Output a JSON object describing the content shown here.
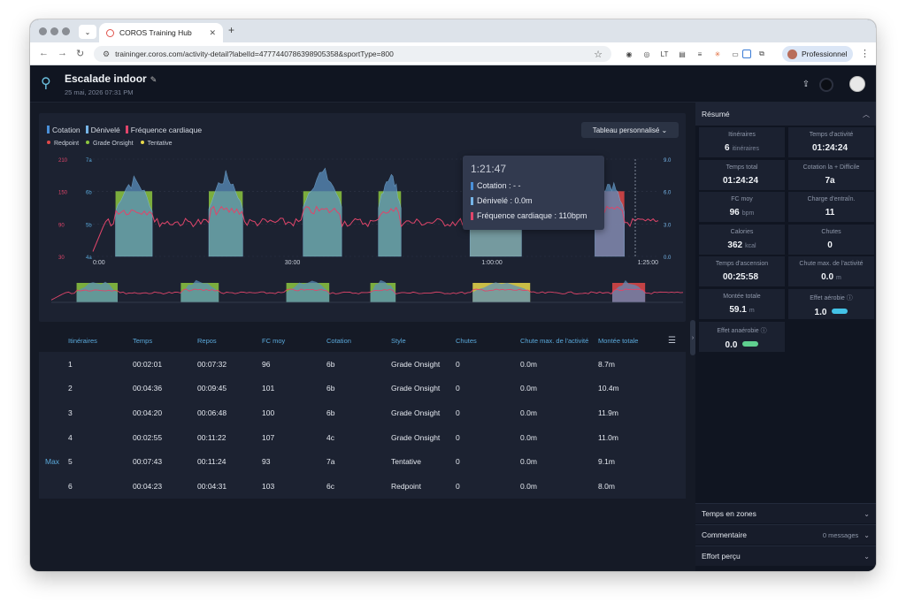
{
  "browser": {
    "tab_title": "COROS Training Hub",
    "url": "traininger.coros.com/activity-detail?labelId=4777440786398905358&sportType=800",
    "profile_label": "Professionnel"
  },
  "activity": {
    "title": "Escalade indoor",
    "date": "25 mai, 2026 07:31 PM"
  },
  "chart": {
    "legend": [
      "Cotation",
      "Dénivelé",
      "Fréquence cardiaque"
    ],
    "legend2": [
      "Redpoint",
      "Grade Onsight",
      "Tentative"
    ],
    "dropdown_label": "Tableau personnalisé ⌄",
    "colors": {
      "cotation": "#4a90d9",
      "denivele": "#76b5e8",
      "hr": "#e0456a",
      "redpoint": "#e04848",
      "onsight": "#8cc63f",
      "tentative": "#e8d84a"
    },
    "left_ticks": [
      "210",
      "150",
      "90",
      "30"
    ],
    "mid_ticks": [
      "7a",
      "6b",
      "5b",
      "4a"
    ],
    "right_ticks": [
      "9.0",
      "6.0",
      "3.0",
      "0.0"
    ],
    "x_ticks": [
      "0:00",
      "30:00",
      "1:00:00",
      "1:25:00"
    ]
  },
  "chart_data": {
    "type": "area",
    "x_unit": "time",
    "duration": "1:25:00",
    "x_ticks": [
      "0:00",
      "30:00",
      "1:00:00",
      "1:25:00"
    ],
    "hr_range": [
      30,
      210
    ],
    "grade_ticks": [
      "4a",
      "5b",
      "6b",
      "7a"
    ],
    "elevation_range": [
      0,
      9
    ],
    "climbs": [
      {
        "route": 1,
        "start_frac": 0.04,
        "end_frac": 0.105,
        "style": "Grade Onsight",
        "peak_elev": 8.7
      },
      {
        "route": 2,
        "start_frac": 0.205,
        "end_frac": 0.265,
        "style": "Grade Onsight",
        "peak_elev": 10.4
      },
      {
        "route": 3,
        "start_frac": 0.372,
        "end_frac": 0.44,
        "style": "Grade Onsight",
        "peak_elev": 11.9
      },
      {
        "route": 4,
        "start_frac": 0.505,
        "end_frac": 0.545,
        "style": "Grade Onsight",
        "peak_elev": 11.0
      },
      {
        "route": 5,
        "start_frac": 0.667,
        "end_frac": 0.758,
        "style": "Tentative",
        "peak_elev": 9.1
      },
      {
        "route": 6,
        "start_frac": 0.888,
        "end_frac": 0.94,
        "style": "Redpoint",
        "peak_elev": 8.0
      }
    ]
  },
  "tooltip": {
    "time": "1:21:47",
    "cotation": "Cotation : - -",
    "denivele": "Dénivelé : 0.0m",
    "hr": "Fréquence cardiaque : 110bpm"
  },
  "table": {
    "headers": [
      "Itinéraires",
      "Temps",
      "Repos",
      "FC moy",
      "Cotation",
      "Style",
      "Chutes",
      "Chute max. de l'activité",
      "Montée totale"
    ],
    "max_label": "Max",
    "rows": [
      [
        "1",
        "00:02:01",
        "00:07:32",
        "96",
        "6b",
        "Grade Onsight",
        "0",
        "0.0m",
        "8.7m"
      ],
      [
        "2",
        "00:04:36",
        "00:09:45",
        "101",
        "6b",
        "Grade Onsight",
        "0",
        "0.0m",
        "10.4m"
      ],
      [
        "3",
        "00:04:20",
        "00:06:48",
        "100",
        "6b",
        "Grade Onsight",
        "0",
        "0.0m",
        "11.9m"
      ],
      [
        "4",
        "00:02:55",
        "00:11:22",
        "107",
        "4c",
        "Grade Onsight",
        "0",
        "0.0m",
        "11.0m"
      ],
      [
        "5",
        "00:07:43",
        "00:11:24",
        "93",
        "7a",
        "Tentative",
        "0",
        "0.0m",
        "9.1m"
      ],
      [
        "6",
        "00:04:23",
        "00:04:31",
        "103",
        "6c",
        "Redpoint",
        "0",
        "0.0m",
        "8.0m"
      ]
    ]
  },
  "summary": {
    "title": "Résumé",
    "cells": [
      {
        "label": "Itinéraires",
        "value": "6",
        "unit": "itinéraires"
      },
      {
        "label": "Temps d'activité",
        "value": "01:24:24",
        "unit": ""
      },
      {
        "label": "Temps total",
        "value": "01:24:24",
        "unit": ""
      },
      {
        "label": "Cotation la + Difficile",
        "value": "7a",
        "unit": ""
      },
      {
        "label": "FC moy",
        "value": "96",
        "unit": "bpm"
      },
      {
        "label": "Charge d'entraîn.",
        "value": "11",
        "unit": ""
      },
      {
        "label": "Calories",
        "value": "362",
        "unit": "kcal"
      },
      {
        "label": "Chutes",
        "value": "0",
        "unit": ""
      },
      {
        "label": "Temps d'ascension",
        "value": "00:25:58",
        "unit": ""
      },
      {
        "label": "Chute max. de l'activité",
        "value": "0.0",
        "unit": "m"
      },
      {
        "label": "Montée totale",
        "value": "59.1",
        "unit": "m"
      },
      {
        "label": "Effet aérobie ⓘ",
        "value": "1.0",
        "unit": ""
      },
      {
        "label": "Effet anaérobie ⓘ",
        "value": "0.0",
        "unit": ""
      }
    ],
    "accordions": [
      {
        "label": "Temps en zones",
        "meta": ""
      },
      {
        "label": "Commentaire",
        "meta": "0 messages"
      },
      {
        "label": "Effort perçu",
        "meta": ""
      }
    ]
  }
}
